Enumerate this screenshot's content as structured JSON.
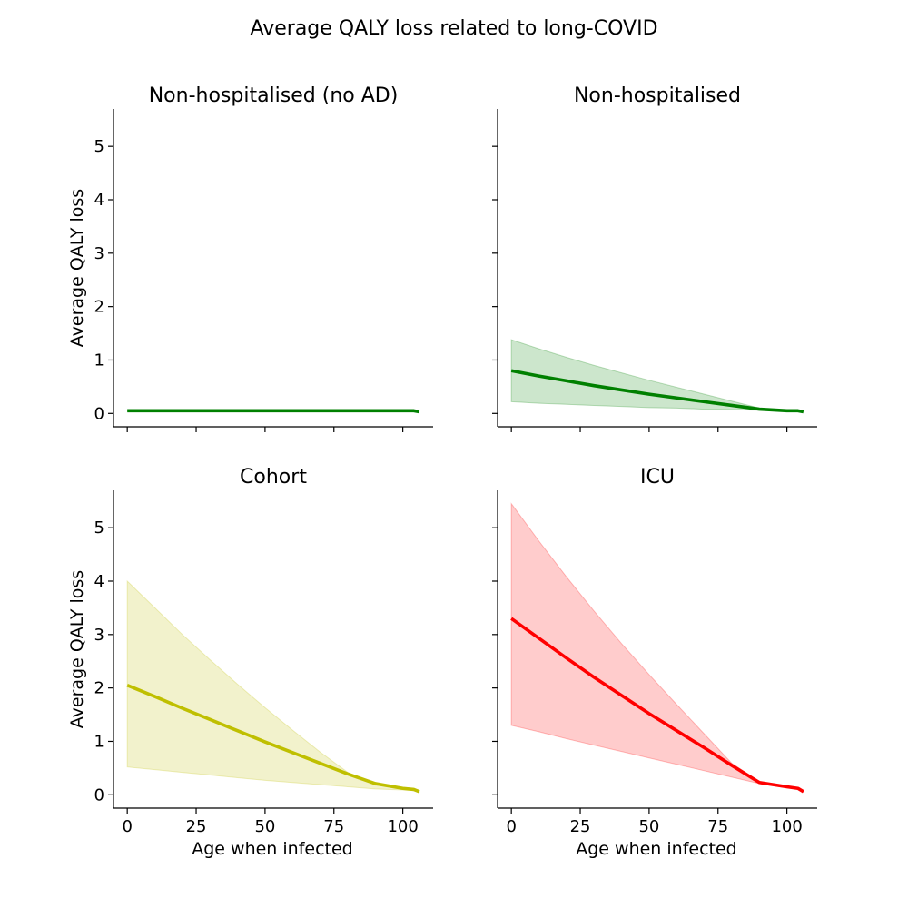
{
  "chart_data": {
    "type": "line",
    "title": "Average QALY loss related to long-COVID",
    "shared_axes": {
      "xlim": [
        -5,
        111
      ],
      "ylim": [
        -0.25,
        5.7
      ],
      "xticks": [
        0,
        25,
        50,
        75,
        100
      ],
      "yticks": [
        0,
        1,
        2,
        3,
        4,
        5
      ],
      "xlabel": "Age when infected",
      "ylabel": "Average QALY loss",
      "grid": false
    },
    "x": [
      0,
      10,
      20,
      30,
      40,
      50,
      60,
      70,
      80,
      90,
      100,
      104,
      106
    ],
    "panels": [
      {
        "title": "Non-hospitalised (no AD)",
        "color": "#008000",
        "mean": [
          0.05,
          0.05,
          0.05,
          0.05,
          0.05,
          0.05,
          0.05,
          0.05,
          0.05,
          0.05,
          0.05,
          0.05,
          0.03
        ],
        "lower": [
          0.05,
          0.05,
          0.05,
          0.05,
          0.05,
          0.05,
          0.05,
          0.05,
          0.05,
          0.05,
          0.05,
          0.05,
          0.03
        ],
        "upper": [
          0.05,
          0.05,
          0.05,
          0.05,
          0.05,
          0.05,
          0.05,
          0.05,
          0.05,
          0.05,
          0.05,
          0.05,
          0.03
        ],
        "show_ylabel": true,
        "show_xlabel": false
      },
      {
        "title": "Non-hospitalised",
        "color": "#008000",
        "mean": [
          0.8,
          0.7,
          0.61,
          0.52,
          0.44,
          0.36,
          0.29,
          0.22,
          0.15,
          0.08,
          0.05,
          0.05,
          0.03
        ],
        "lower": [
          0.22,
          0.19,
          0.17,
          0.15,
          0.13,
          0.11,
          0.1,
          0.08,
          0.07,
          0.06,
          0.05,
          0.05,
          0.03
        ],
        "upper": [
          1.38,
          1.21,
          1.05,
          0.9,
          0.76,
          0.62,
          0.49,
          0.36,
          0.23,
          0.1,
          0.05,
          0.05,
          0.03
        ],
        "show_ylabel": false,
        "show_xlabel": false
      },
      {
        "title": "Cohort",
        "color": "#bfbf00",
        "mean": [
          2.05,
          1.84,
          1.62,
          1.41,
          1.2,
          0.99,
          0.79,
          0.59,
          0.39,
          0.21,
          0.12,
          0.1,
          0.06
        ],
        "lower": [
          0.52,
          0.47,
          0.42,
          0.37,
          0.32,
          0.27,
          0.23,
          0.19,
          0.15,
          0.11,
          0.09,
          0.08,
          0.05
        ],
        "upper": [
          4.0,
          3.5,
          3.0,
          2.53,
          2.07,
          1.63,
          1.21,
          0.8,
          0.42,
          0.18,
          0.14,
          0.12,
          0.07
        ],
        "show_ylabel": true,
        "show_xlabel": true
      },
      {
        "title": "ICU",
        "color": "#ff0000",
        "mean": [
          3.3,
          2.93,
          2.56,
          2.2,
          1.86,
          1.52,
          1.2,
          0.88,
          0.55,
          0.23,
          0.15,
          0.12,
          0.06
        ],
        "lower": [
          1.3,
          1.18,
          1.05,
          0.93,
          0.81,
          0.69,
          0.57,
          0.45,
          0.33,
          0.21,
          0.13,
          0.11,
          0.05
        ],
        "upper": [
          5.45,
          4.75,
          4.08,
          3.44,
          2.83,
          2.25,
          1.69,
          1.14,
          0.59,
          0.24,
          0.16,
          0.13,
          0.07
        ],
        "show_ylabel": false,
        "show_xlabel": true
      }
    ]
  }
}
